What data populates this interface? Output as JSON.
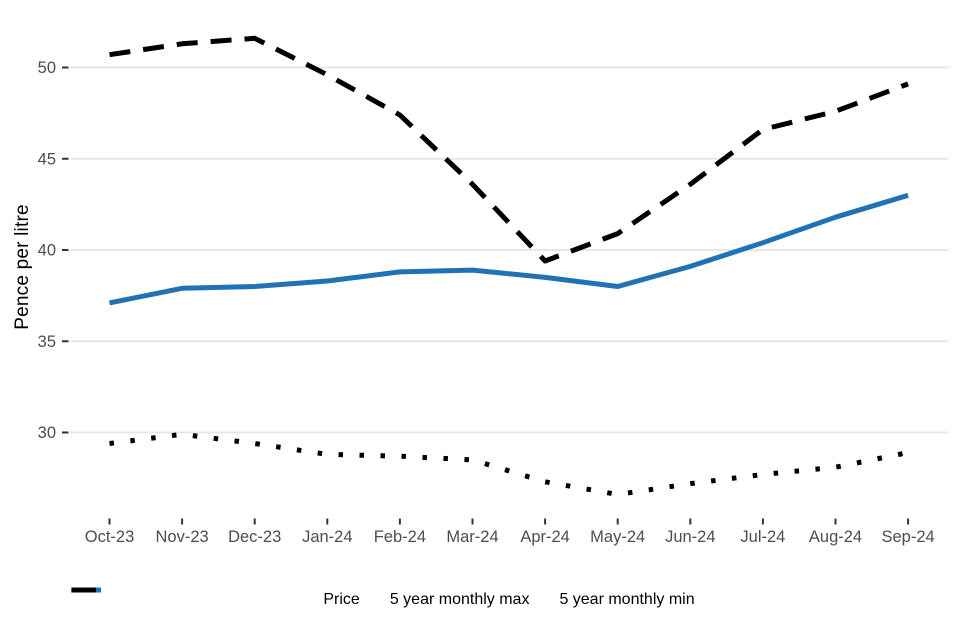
{
  "chart_data": {
    "type": "line",
    "title": "",
    "xlabel": "",
    "ylabel": "Pence per litre",
    "categories": [
      "Oct-23",
      "Nov-23",
      "Dec-23",
      "Jan-24",
      "Feb-24",
      "Mar-24",
      "Apr-24",
      "May-24",
      "Jun-24",
      "Jul-24",
      "Aug-24",
      "Sep-24"
    ],
    "series": [
      {
        "name": "Price",
        "color": "#2171b5",
        "line_style": "solid",
        "values": [
          37.1,
          37.9,
          38.0,
          38.3,
          38.8,
          38.9,
          38.5,
          38.0,
          39.1,
          40.4,
          41.8,
          43.0
        ]
      },
      {
        "name": "5 year monthly max",
        "color": "#000000",
        "line_style": "dashed",
        "values": [
          50.7,
          51.3,
          51.6,
          49.6,
          47.4,
          43.6,
          39.4,
          40.9,
          43.6,
          46.6,
          47.6,
          49.1
        ]
      },
      {
        "name": "5 year monthly min",
        "color": "#000000",
        "line_style": "dotted",
        "values": [
          29.4,
          29.9,
          29.4,
          28.8,
          28.7,
          28.5,
          27.3,
          26.6,
          27.2,
          27.7,
          28.1,
          28.9
        ]
      }
    ],
    "yticks": [
      "30",
      "35",
      "40",
      "45",
      "50"
    ],
    "ylim": [
      25.3,
      52.9
    ],
    "grid": "horizontal-only",
    "gridline_color": "#e7e7e7",
    "axis_text_color": "#4d4d4d",
    "legend_position": "bottom-center"
  }
}
